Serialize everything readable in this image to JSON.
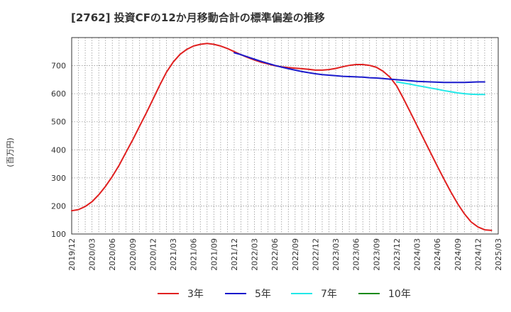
{
  "chart_data": {
    "type": "line",
    "title": "[2762]  投資CFの12か月移動合計の標準偏差の推移",
    "ylabel": "(百万円)",
    "xlabel": "",
    "ylim": [
      100,
      800
    ],
    "yticks": [
      100,
      200,
      300,
      400,
      500,
      600,
      700
    ],
    "x_range": [
      "2019-12",
      "2025-03"
    ],
    "xticks": [
      "2019/12",
      "2020/03",
      "2020/06",
      "2020/09",
      "2020/12",
      "2021/03",
      "2021/06",
      "2021/09",
      "2021/12",
      "2022/03",
      "2022/06",
      "2022/09",
      "2022/12",
      "2023/03",
      "2023/06",
      "2023/09",
      "2023/12",
      "2024/03",
      "2024/06",
      "2024/09",
      "2024/12",
      "2025/03"
    ],
    "grid": true,
    "legend_position": "bottom",
    "series": [
      {
        "name": "3年",
        "color": "#e02020",
        "points": [
          [
            "2019-12",
            183
          ],
          [
            "2020-01",
            187
          ],
          [
            "2020-02",
            198
          ],
          [
            "2020-03",
            215
          ],
          [
            "2020-04",
            240
          ],
          [
            "2020-05",
            270
          ],
          [
            "2020-06",
            305
          ],
          [
            "2020-07",
            345
          ],
          [
            "2020-08",
            390
          ],
          [
            "2020-09",
            435
          ],
          [
            "2020-10",
            483
          ],
          [
            "2020-11",
            530
          ],
          [
            "2020-12",
            580
          ],
          [
            "2021-01",
            630
          ],
          [
            "2021-02",
            677
          ],
          [
            "2021-03",
            713
          ],
          [
            "2021-04",
            740
          ],
          [
            "2021-05",
            758
          ],
          [
            "2021-06",
            770
          ],
          [
            "2021-07",
            776
          ],
          [
            "2021-08",
            779
          ],
          [
            "2021-09",
            776
          ],
          [
            "2021-10",
            770
          ],
          [
            "2021-11",
            761
          ],
          [
            "2021-12",
            750
          ],
          [
            "2022-01",
            739
          ],
          [
            "2022-02",
            729
          ],
          [
            "2022-03",
            720
          ],
          [
            "2022-04",
            712
          ],
          [
            "2022-05",
            706
          ],
          [
            "2022-06",
            700
          ],
          [
            "2022-07",
            696
          ],
          [
            "2022-08",
            693
          ],
          [
            "2022-09",
            691
          ],
          [
            "2022-10",
            689
          ],
          [
            "2022-11",
            687
          ],
          [
            "2022-12",
            684
          ],
          [
            "2023-01",
            684
          ],
          [
            "2023-02",
            686
          ],
          [
            "2023-03",
            690
          ],
          [
            "2023-04",
            696
          ],
          [
            "2023-05",
            701
          ],
          [
            "2023-06",
            704
          ],
          [
            "2023-07",
            704
          ],
          [
            "2023-08",
            701
          ],
          [
            "2023-09",
            694
          ],
          [
            "2023-10",
            680
          ],
          [
            "2023-11",
            659
          ],
          [
            "2023-12",
            628
          ],
          [
            "2024-01",
            583
          ],
          [
            "2024-02",
            535
          ],
          [
            "2024-03",
            487
          ],
          [
            "2024-04",
            438
          ],
          [
            "2024-05",
            390
          ],
          [
            "2024-06",
            342
          ],
          [
            "2024-07",
            295
          ],
          [
            "2024-08",
            250
          ],
          [
            "2024-09",
            208
          ],
          [
            "2024-10",
            172
          ],
          [
            "2024-11",
            143
          ],
          [
            "2024-12",
            125
          ],
          [
            "2025-01",
            115
          ],
          [
            "2025-02",
            113
          ]
        ]
      },
      {
        "name": "5年",
        "color": "#1a1acc",
        "points": [
          [
            "2021-12",
            746
          ],
          [
            "2022-01",
            739
          ],
          [
            "2022-02",
            731
          ],
          [
            "2022-03",
            723
          ],
          [
            "2022-04",
            715
          ],
          [
            "2022-05",
            708
          ],
          [
            "2022-06",
            701
          ],
          [
            "2022-07",
            695
          ],
          [
            "2022-08",
            689
          ],
          [
            "2022-09",
            684
          ],
          [
            "2022-10",
            679
          ],
          [
            "2022-11",
            675
          ],
          [
            "2022-12",
            671
          ],
          [
            "2023-01",
            668
          ],
          [
            "2023-02",
            666
          ],
          [
            "2023-03",
            664
          ],
          [
            "2023-04",
            662
          ],
          [
            "2023-05",
            661
          ],
          [
            "2023-06",
            660
          ],
          [
            "2023-07",
            659
          ],
          [
            "2023-08",
            657
          ],
          [
            "2023-09",
            656
          ],
          [
            "2023-10",
            654
          ],
          [
            "2023-11",
            652
          ],
          [
            "2023-12",
            650
          ],
          [
            "2024-01",
            648
          ],
          [
            "2024-02",
            646
          ],
          [
            "2024-03",
            644
          ],
          [
            "2024-04",
            643
          ],
          [
            "2024-05",
            642
          ],
          [
            "2024-06",
            641
          ],
          [
            "2024-07",
            640
          ],
          [
            "2024-08",
            640
          ],
          [
            "2024-09",
            640
          ],
          [
            "2024-10",
            640
          ],
          [
            "2024-11",
            641
          ],
          [
            "2024-12",
            642
          ],
          [
            "2025-01",
            642
          ]
        ]
      },
      {
        "name": "7年",
        "color": "#22e8e8",
        "points": [
          [
            "2023-12",
            642
          ],
          [
            "2024-01",
            638
          ],
          [
            "2024-02",
            634
          ],
          [
            "2024-03",
            629
          ],
          [
            "2024-04",
            625
          ],
          [
            "2024-05",
            620
          ],
          [
            "2024-06",
            616
          ],
          [
            "2024-07",
            611
          ],
          [
            "2024-08",
            607
          ],
          [
            "2024-09",
            603
          ],
          [
            "2024-10",
            600
          ],
          [
            "2024-11",
            598
          ],
          [
            "2024-12",
            597
          ],
          [
            "2025-01",
            597
          ]
        ]
      },
      {
        "name": "10年",
        "color": "#1a8a1a",
        "points": []
      }
    ]
  }
}
